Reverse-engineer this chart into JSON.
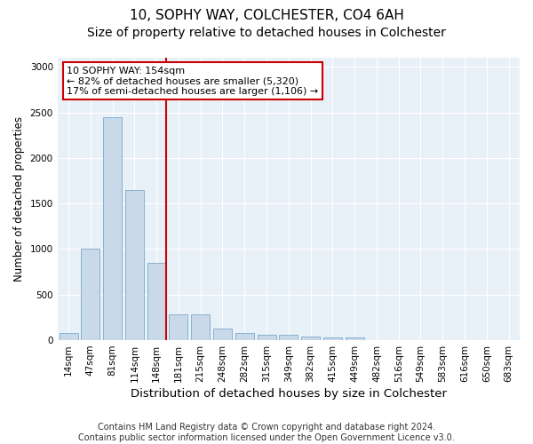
{
  "title1": "10, SOPHY WAY, COLCHESTER, CO4 6AH",
  "title2": "Size of property relative to detached houses in Colchester",
  "xlabel": "Distribution of detached houses by size in Colchester",
  "ylabel": "Number of detached properties",
  "categories": [
    "14sqm",
    "47sqm",
    "81sqm",
    "114sqm",
    "148sqm",
    "181sqm",
    "215sqm",
    "248sqm",
    "282sqm",
    "315sqm",
    "349sqm",
    "382sqm",
    "415sqm",
    "449sqm",
    "482sqm",
    "516sqm",
    "549sqm",
    "583sqm",
    "616sqm",
    "650sqm",
    "683sqm"
  ],
  "values": [
    75,
    1000,
    2450,
    1650,
    850,
    280,
    280,
    130,
    75,
    60,
    55,
    40,
    30,
    30,
    3,
    5,
    0,
    0,
    0,
    0,
    0
  ],
  "bar_color": "#c9d9ea",
  "bar_edge_color": "#7aaaca",
  "background_color": "#e8f0f8",
  "annotation_box_color": "#ffffff",
  "annotation_border_color": "#cc0000",
  "vline_color": "#cc0000",
  "vline_x_pos": 4.42,
  "annotation_text_line1": "10 SOPHY WAY: 154sqm",
  "annotation_text_line2": "← 82% of detached houses are smaller (5,320)",
  "annotation_text_line3": "17% of semi-detached houses are larger (1,106) →",
  "footer1": "Contains HM Land Registry data © Crown copyright and database right 2024.",
  "footer2": "Contains public sector information licensed under the Open Government Licence v3.0.",
  "ylim": [
    0,
    3100
  ],
  "yticks": [
    0,
    500,
    1000,
    1500,
    2000,
    2500,
    3000
  ],
  "title1_fontsize": 11,
  "title2_fontsize": 10,
  "xlabel_fontsize": 9.5,
  "ylabel_fontsize": 8.5,
  "tick_fontsize": 7.5,
  "annotation_fontsize": 8,
  "footer_fontsize": 7
}
